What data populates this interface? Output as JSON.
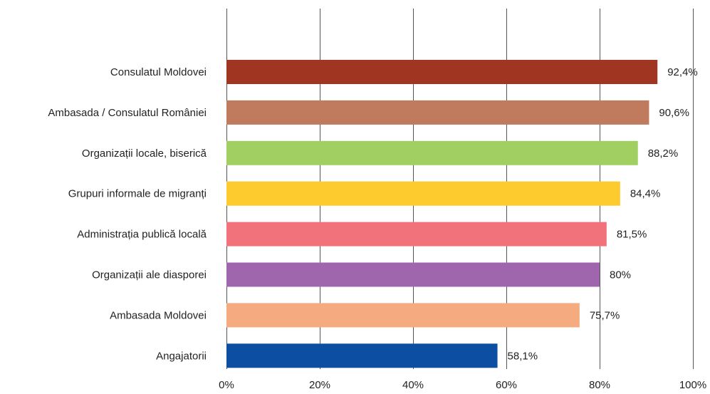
{
  "chart_data": {
    "type": "bar",
    "orientation": "horizontal",
    "categories": [
      "Consulatul Moldovei",
      "Ambasada / Consulatul României",
      "Organizații locale, biserică",
      "Grupuri informale de migranți",
      "Administrația publică locală",
      "Organizații ale diasporei",
      "Ambasada Moldovei",
      "Angajatorii"
    ],
    "values": [
      92.4,
      90.6,
      88.2,
      84.4,
      81.5,
      80,
      75.7,
      58.1
    ],
    "value_labels": [
      "92,4%",
      "90,6%",
      "88,2%",
      "84,4%",
      "81,5%",
      "80%",
      "75,7%",
      "58,1%"
    ],
    "colors": [
      "#a03522",
      "#c07a5e",
      "#a2cf61",
      "#fecb2e",
      "#f2727c",
      "#a066ad",
      "#f5aa80",
      "#0b4ea2"
    ],
    "xlim": [
      0,
      100
    ],
    "xticks": [
      0,
      20,
      40,
      60,
      80,
      100
    ],
    "xtick_labels": [
      "0%",
      "20%",
      "40%",
      "60%",
      "80%",
      "100%"
    ],
    "grid": "vertical",
    "legend": "none",
    "title": "",
    "xlabel": "",
    "ylabel": ""
  }
}
